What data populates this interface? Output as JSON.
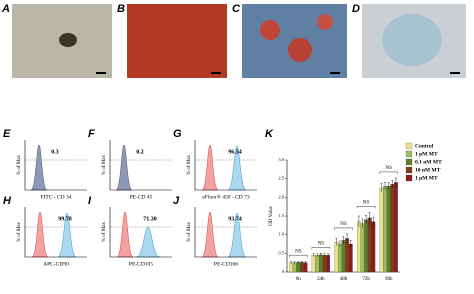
{
  "figure": {
    "photos": [
      {
        "label": "A"
      },
      {
        "label": "B"
      },
      {
        "label": "C"
      },
      {
        "label": "D"
      }
    ],
    "flow": [
      {
        "label": "E",
        "marker": "FITC - CD 34",
        "percent": "0.3",
        "ylabel": "% of Max"
      },
      {
        "label": "F",
        "marker": "PE-CD 45",
        "percent": "0.2",
        "ylabel": "% of Max"
      },
      {
        "label": "G",
        "marker": "eFluor® 450 - CD 73",
        "percent": "96.54",
        "ylabel": "% of Max"
      },
      {
        "label": "H",
        "marker": "APC-CD90",
        "percent": "99.78",
        "ylabel": "% of Max"
      },
      {
        "label": "I",
        "marker": "PE-CD105",
        "percent": "71.30",
        "ylabel": "% of Max"
      },
      {
        "label": "J",
        "marker": "PE-CD166",
        "percent": "93.74",
        "ylabel": "% of Max"
      }
    ]
  },
  "chart_data": {
    "type": "bar",
    "panel_label": "K",
    "ylabel": "OD Value",
    "categories": [
      "0h",
      "24h",
      "48h",
      "72h",
      "96h"
    ],
    "annotations": [
      "NS",
      "NS",
      "NS",
      "NS",
      "NS"
    ],
    "ylim": [
      0,
      3
    ],
    "yticks": [
      0,
      {
        "value": 0.5,
        "label": "0.5"
      },
      {
        "value": 1,
        "label": "1.0"
      },
      {
        "value": 1.5,
        "label": "1.5"
      },
      {
        "value": 2,
        "label": "2.0"
      },
      {
        "value": 2.5,
        "label": "2.5"
      },
      {
        "value": 3,
        "label": "3.0"
      }
    ],
    "series": [
      {
        "name": "Control",
        "color": "#efe08c",
        "values": [
          0.25,
          0.45,
          0.8,
          1.35,
          2.25
        ],
        "errors": [
          0.03,
          0.04,
          0.1,
          0.15,
          0.12
        ]
      },
      {
        "name": "1 pM MT",
        "color": "#9cbf5f",
        "values": [
          0.25,
          0.45,
          0.75,
          1.3,
          2.3
        ],
        "errors": [
          0.03,
          0.04,
          0.08,
          0.12,
          0.1
        ]
      },
      {
        "name": "0.1 nM MT",
        "color": "#5f7f2a",
        "values": [
          0.26,
          0.46,
          0.85,
          1.4,
          2.3
        ],
        "errors": [
          0.03,
          0.04,
          0.1,
          0.12,
          0.1
        ]
      },
      {
        "name": "10 nM MT",
        "color": "#7a3f1c",
        "values": [
          0.26,
          0.45,
          0.9,
          1.45,
          2.35
        ],
        "errors": [
          0.03,
          0.04,
          0.12,
          0.15,
          0.1
        ]
      },
      {
        "name": "1 μM MT",
        "color": "#8e1b1b",
        "values": [
          0.25,
          0.45,
          0.75,
          1.35,
          2.4
        ],
        "errors": [
          0.03,
          0.04,
          0.1,
          0.12,
          0.12
        ]
      }
    ]
  }
}
